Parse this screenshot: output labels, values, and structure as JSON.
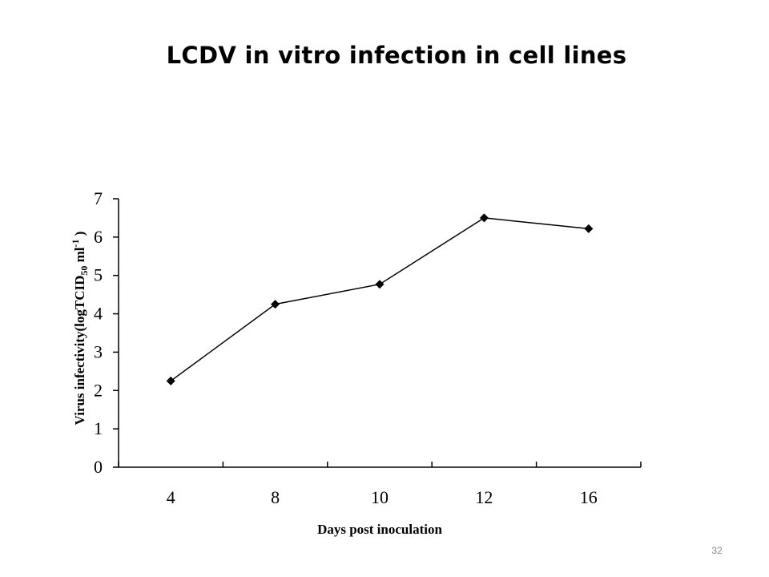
{
  "slide": {
    "title": "LCDV in vitro infection in cell lines",
    "page_number": "32"
  },
  "chart_data": {
    "type": "line",
    "categories": [
      "4",
      "8",
      "10",
      "12",
      "16"
    ],
    "series": [
      {
        "values": [
          2.25,
          4.25,
          4.77,
          6.5,
          6.22
        ],
        "color": "#000000",
        "marker": "diamond"
      }
    ],
    "xlabel": "Days post inoculation",
    "ylabel_parts": {
      "prefix": "Virus infectivity(logTCID",
      "sub": "50",
      "mid": " ml",
      "sup": "-1",
      "suffix": " )"
    },
    "ylim": [
      0,
      7
    ],
    "yticks": [
      "0",
      "1",
      "2",
      "3",
      "4",
      "5",
      "6",
      "7"
    ],
    "grid": false,
    "legend": "none"
  }
}
